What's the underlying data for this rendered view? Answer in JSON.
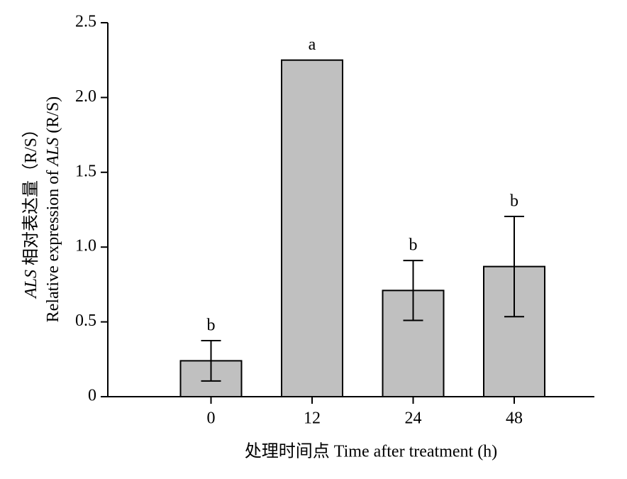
{
  "chart_data": {
    "type": "bar",
    "categories": [
      "0",
      "12",
      "24",
      "48"
    ],
    "values": [
      0.24,
      2.25,
      0.71,
      0.87
    ],
    "errors": [
      0.135,
      null,
      0.2,
      0.335
    ],
    "letters": [
      "b",
      "a",
      "b",
      "b"
    ],
    "color": "#c0c0c0",
    "ylim": [
      0,
      2.5
    ],
    "yticks": [
      0,
      0.5,
      {
        "value": 1,
        "label": "1.0"
      },
      1.5,
      {
        "value": 2,
        "label": "2.0"
      },
      2.5
    ],
    "y_label": [
      [
        {
          "text": "ALS",
          "italic": true
        },
        {
          "text": " 相对表达量（R/S）",
          "italic": false
        }
      ],
      [
        {
          "text": "Relative expression of ",
          "italic": false
        },
        {
          "text": "ALS",
          "italic": true
        },
        {
          "text": " (R/S)",
          "italic": false
        }
      ]
    ],
    "x_label": "处理时间点 Time after treatment (h)"
  }
}
